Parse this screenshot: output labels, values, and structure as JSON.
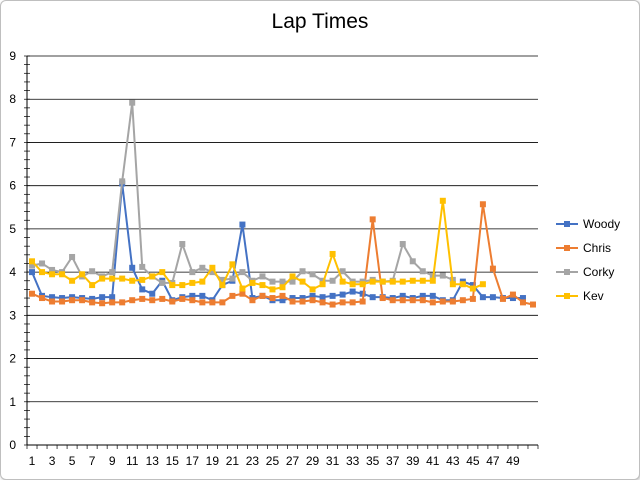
{
  "chart_data": {
    "type": "line",
    "title": "Lap Times",
    "xlabel": "",
    "ylabel": "",
    "ylim": [
      0,
      9
    ],
    "y_ticks": [
      "0",
      "1",
      "2",
      "3",
      "4",
      "5",
      "6",
      "7",
      "8",
      "9"
    ],
    "x_ticks": [
      "1",
      "3",
      "5",
      "7",
      "9",
      "11",
      "13",
      "15",
      "17",
      "19",
      "21",
      "23",
      "25",
      "27",
      "29",
      "31",
      "33",
      "35",
      "37",
      "39",
      "41",
      "43",
      "45",
      "47",
      "49"
    ],
    "x_count": 51,
    "grid": "horizontal",
    "legend_position": "right",
    "series": [
      {
        "name": "Woody",
        "color": "#4472C4",
        "marker": "square",
        "values": [
          4.0,
          3.45,
          3.42,
          3.4,
          3.42,
          3.4,
          3.38,
          3.42,
          3.42,
          6.05,
          4.1,
          3.6,
          3.5,
          3.8,
          3.35,
          3.42,
          3.45,
          3.45,
          3.35,
          3.7,
          3.8,
          5.1,
          3.4,
          3.45,
          3.35,
          3.35,
          3.4,
          3.4,
          3.45,
          3.42,
          3.45,
          3.48,
          3.55,
          3.5,
          3.42,
          3.42,
          3.4,
          3.45,
          3.4,
          3.45,
          3.45,
          3.35,
          3.35,
          3.78,
          3.7,
          3.42,
          3.42,
          3.4,
          3.4,
          3.4,
          null
        ]
      },
      {
        "name": "Chris",
        "color": "#ED7D31",
        "marker": "square",
        "values": [
          3.5,
          3.4,
          3.32,
          3.32,
          3.35,
          3.35,
          3.3,
          3.28,
          3.3,
          3.3,
          3.35,
          3.38,
          3.35,
          3.38,
          3.32,
          3.38,
          3.35,
          3.3,
          3.3,
          3.3,
          3.45,
          3.5,
          3.35,
          3.45,
          3.4,
          3.45,
          3.32,
          3.32,
          3.35,
          3.3,
          3.25,
          3.3,
          3.3,
          3.32,
          5.22,
          3.4,
          3.35,
          3.35,
          3.35,
          3.35,
          3.3,
          3.32,
          3.32,
          3.35,
          3.38,
          5.57,
          4.08,
          3.38,
          3.48,
          3.3,
          3.25
        ]
      },
      {
        "name": "Corky",
        "color": "#A5A5A5",
        "marker": "square",
        "values": [
          4.15,
          4.2,
          4.05,
          4.0,
          4.35,
          3.9,
          4.02,
          3.9,
          4.0,
          6.1,
          7.92,
          4.12,
          3.9,
          3.75,
          3.75,
          4.65,
          4.0,
          4.1,
          4.0,
          3.82,
          3.85,
          4.0,
          3.8,
          3.9,
          3.78,
          3.78,
          3.78,
          4.02,
          3.95,
          3.8,
          3.8,
          4.02,
          3.78,
          3.78,
          3.82,
          3.78,
          3.8,
          4.65,
          4.25,
          4.02,
          3.92,
          3.92,
          3.82,
          null,
          null,
          null,
          null,
          null,
          null,
          null,
          null
        ]
      },
      {
        "name": "Kev",
        "color": "#FFC000",
        "marker": "square",
        "values": [
          4.25,
          4.0,
          3.95,
          3.95,
          3.8,
          3.95,
          3.7,
          3.85,
          3.85,
          3.85,
          3.8,
          3.82,
          3.9,
          4.0,
          3.7,
          3.7,
          3.75,
          3.78,
          4.1,
          3.7,
          4.18,
          3.62,
          3.75,
          3.7,
          3.6,
          3.65,
          3.9,
          3.78,
          3.6,
          3.72,
          4.42,
          3.78,
          3.72,
          3.72,
          3.78,
          3.78,
          3.78,
          3.78,
          3.8,
          3.8,
          3.8,
          5.65,
          3.72,
          3.72,
          3.62,
          3.72,
          null,
          null,
          null,
          null,
          null
        ]
      }
    ]
  }
}
